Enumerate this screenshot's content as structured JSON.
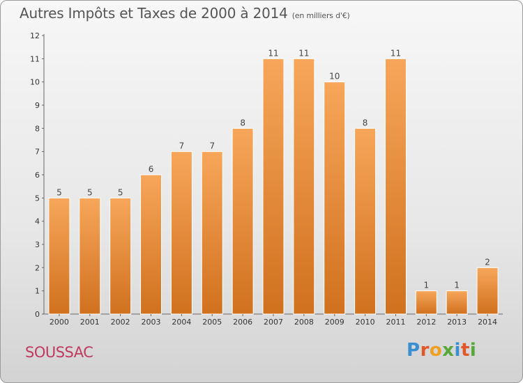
{
  "header": {
    "title": "Autres Impôts et Taxes de 2000 à 2014",
    "unit": "(en milliers d'€)"
  },
  "commune": "SOUSSAC",
  "logo": {
    "text": "Proxiti",
    "colors": [
      "#3a8fd0",
      "#e0572a",
      "#f0a020",
      "#56a83a",
      "#3a8fd0",
      "#e0572a",
      "#56a83a"
    ]
  },
  "colors": {
    "bar_light": "#f7a65a",
    "bar_dark": "#d0711e",
    "title": "#555555",
    "commune": "#c0395f"
  },
  "chart_data": {
    "type": "bar",
    "title": "Autres Impôts et Taxes de 2000 à 2014",
    "subtitle": "(en milliers d'€)",
    "categories": [
      "2000",
      "2001",
      "2002",
      "2003",
      "2004",
      "2005",
      "2006",
      "2007",
      "2008",
      "2009",
      "2010",
      "2011",
      "2012",
      "2013",
      "2014"
    ],
    "values": [
      5,
      5,
      5,
      6,
      7,
      7,
      8,
      11,
      11,
      10,
      8,
      11,
      1,
      1,
      2
    ],
    "data_labels": [
      "5",
      "5",
      "5",
      "6",
      "7",
      "7",
      "8",
      "11",
      "11",
      "10",
      "8",
      "11",
      "1",
      "1",
      "2"
    ],
    "yticks": [
      "0",
      "1",
      "2",
      "3",
      "4",
      "5",
      "6",
      "7",
      "8",
      "9",
      "10",
      "11",
      "12"
    ],
    "ylim": [
      0,
      12
    ],
    "xlabel": "",
    "ylabel": "",
    "grid": false,
    "legend": "none"
  }
}
